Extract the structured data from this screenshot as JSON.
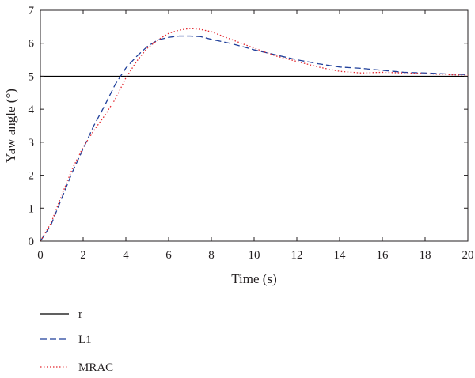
{
  "chart_data": {
    "type": "line",
    "xlabel": "Time (s)",
    "ylabel": "Yaw angle (°)",
    "xlim": [
      0,
      20
    ],
    "ylim": [
      0,
      7
    ],
    "xticks": [
      "0",
      "2",
      "4",
      "6",
      "8",
      "10",
      "12",
      "14",
      "16",
      "18",
      "20"
    ],
    "yticks": [
      "0",
      "1",
      "2",
      "3",
      "4",
      "5",
      "6",
      "7"
    ],
    "grid": false,
    "legend_position": "below",
    "series": [
      {
        "name": "r",
        "color": "#000000",
        "style": "solid",
        "x": [
          0,
          20
        ],
        "y": [
          5,
          5
        ]
      },
      {
        "name": "L1",
        "color": "#1f3f9a",
        "style": "dashed",
        "x": [
          0,
          0.5,
          1,
          1.5,
          2,
          2.5,
          3,
          3.5,
          4,
          4.5,
          5,
          5.5,
          6,
          6.5,
          7,
          7.5,
          8,
          9,
          10,
          11,
          12,
          13,
          14,
          15,
          16,
          17,
          18,
          19,
          20
        ],
        "y": [
          0,
          0.5,
          1.3,
          2.1,
          2.8,
          3.5,
          4.1,
          4.75,
          5.25,
          5.6,
          5.9,
          6.1,
          6.18,
          6.22,
          6.22,
          6.2,
          6.12,
          5.98,
          5.8,
          5.65,
          5.5,
          5.38,
          5.28,
          5.24,
          5.18,
          5.12,
          5.1,
          5.07,
          5.05
        ]
      },
      {
        "name": "MRAC",
        "color": "#e3262d",
        "style": "dotted",
        "x": [
          0,
          0.5,
          1,
          1.5,
          2,
          2.5,
          3,
          3.5,
          4,
          4.5,
          5,
          5.5,
          6,
          6.5,
          7,
          7.5,
          8,
          9,
          10,
          11,
          12,
          13,
          14,
          15,
          16,
          17,
          18,
          19,
          20
        ],
        "y": [
          0,
          0.55,
          1.4,
          2.2,
          2.85,
          3.35,
          3.8,
          4.3,
          4.95,
          5.45,
          5.85,
          6.1,
          6.3,
          6.4,
          6.45,
          6.42,
          6.35,
          6.1,
          5.85,
          5.62,
          5.45,
          5.28,
          5.15,
          5.1,
          5.12,
          5.1,
          5.08,
          5.05,
          5.03
        ]
      }
    ]
  }
}
